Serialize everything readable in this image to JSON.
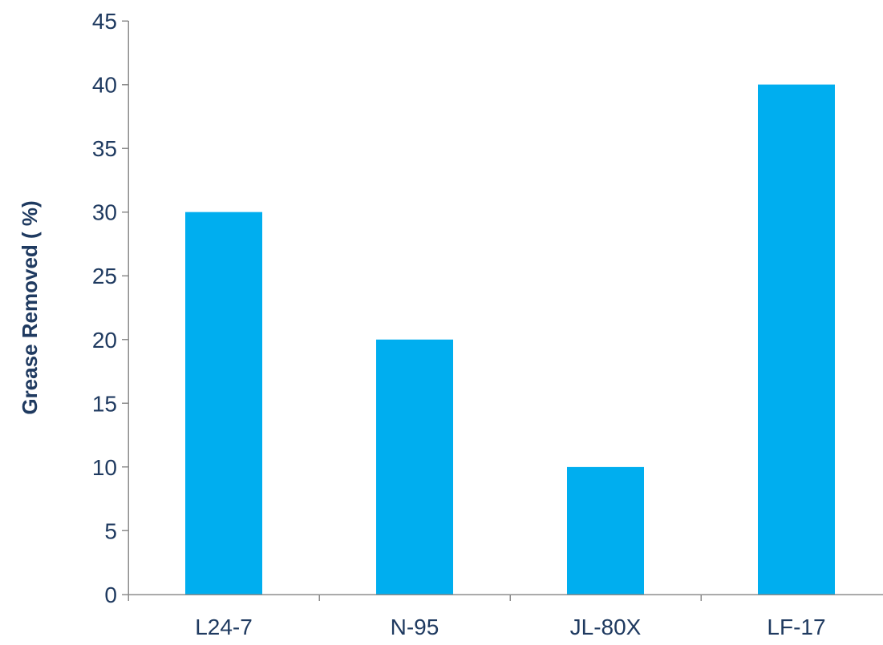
{
  "chart_data": {
    "type": "bar",
    "title": "",
    "xlabel": "",
    "ylabel": "Grease Removed ( %)",
    "categories": [
      "L24-7",
      "N-95",
      "JL-80X",
      "LF-17"
    ],
    "values": [
      30,
      20,
      10,
      40
    ],
    "ylim": [
      0,
      45
    ],
    "yticks": [
      0,
      5,
      10,
      15,
      20,
      25,
      30,
      35,
      40,
      45
    ],
    "grid": false,
    "legend": "none",
    "colors": {
      "bar": "#00AEEF",
      "axis": "#8C8C8C",
      "text": "#1F3A60"
    }
  }
}
